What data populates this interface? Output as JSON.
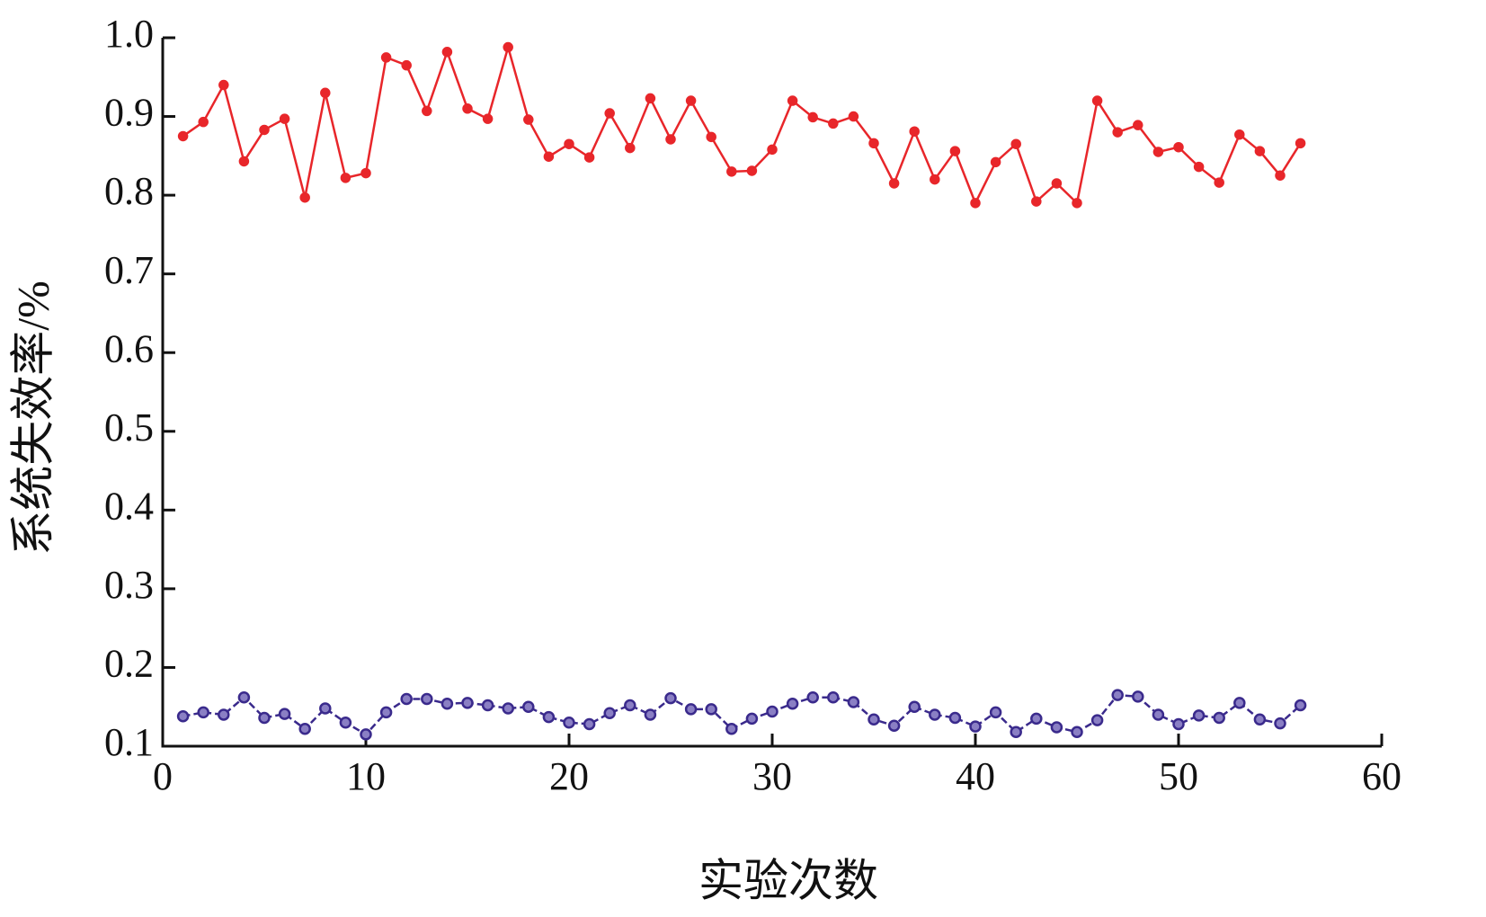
{
  "chart_data": {
    "type": "line",
    "x_label": "实验次数",
    "y_label": "系统失效率/%",
    "x": [
      1,
      2,
      3,
      4,
      5,
      6,
      7,
      8,
      9,
      10,
      11,
      12,
      13,
      14,
      15,
      16,
      17,
      18,
      19,
      20,
      21,
      22,
      23,
      24,
      25,
      26,
      27,
      28,
      29,
      30,
      31,
      32,
      33,
      34,
      35,
      36,
      37,
      38,
      39,
      40,
      41,
      42,
      43,
      44,
      45,
      46,
      47,
      48,
      49,
      50,
      51,
      52,
      53,
      54,
      55,
      56
    ],
    "series": [
      {
        "color": "#e8262a",
        "marker": "star",
        "linestyle": "solid",
        "values": [
          0.875,
          0.893,
          0.94,
          0.843,
          0.883,
          0.897,
          0.797,
          0.93,
          0.822,
          0.828,
          0.975,
          0.965,
          0.907,
          0.982,
          0.91,
          0.897,
          0.988,
          0.896,
          0.849,
          0.865,
          0.848,
          0.904,
          0.86,
          0.923,
          0.871,
          0.92,
          0.874,
          0.83,
          0.831,
          0.858,
          0.92,
          0.899,
          0.891,
          0.9,
          0.866,
          0.815,
          0.881,
          0.82,
          0.856,
          0.79,
          0.842,
          0.865,
          0.792,
          0.815,
          0.79,
          0.92,
          0.88,
          0.889,
          0.855,
          0.861,
          0.836,
          0.816,
          0.877,
          0.856,
          0.825,
          0.866
        ]
      },
      {
        "color": "#3a2a8c",
        "marker": "circle",
        "linestyle": "dashed",
        "values": [
          0.138,
          0.143,
          0.14,
          0.162,
          0.136,
          0.141,
          0.122,
          0.148,
          0.13,
          0.115,
          0.143,
          0.16,
          0.16,
          0.154,
          0.155,
          0.152,
          0.148,
          0.15,
          0.137,
          0.13,
          0.128,
          0.142,
          0.152,
          0.14,
          0.161,
          0.147,
          0.147,
          0.122,
          0.135,
          0.144,
          0.154,
          0.162,
          0.162,
          0.156,
          0.134,
          0.126,
          0.15,
          0.14,
          0.136,
          0.125,
          0.143,
          0.118,
          0.135,
          0.124,
          0.118,
          0.133,
          0.165,
          0.163,
          0.14,
          0.128,
          0.139,
          0.136,
          0.155,
          0.134,
          0.129,
          0.152
        ]
      }
    ],
    "xlim": [
      0,
      60
    ],
    "xticks": [
      0,
      10,
      20,
      30,
      40,
      50,
      60
    ],
    "ylim": [
      0.1,
      1.0
    ],
    "yticks": [
      0.1,
      0.2,
      0.3,
      0.4,
      0.5,
      0.6,
      0.7,
      0.8,
      0.9,
      {
        "value": 1.0,
        "label": "1.0"
      }
    ],
    "grid": false
  }
}
